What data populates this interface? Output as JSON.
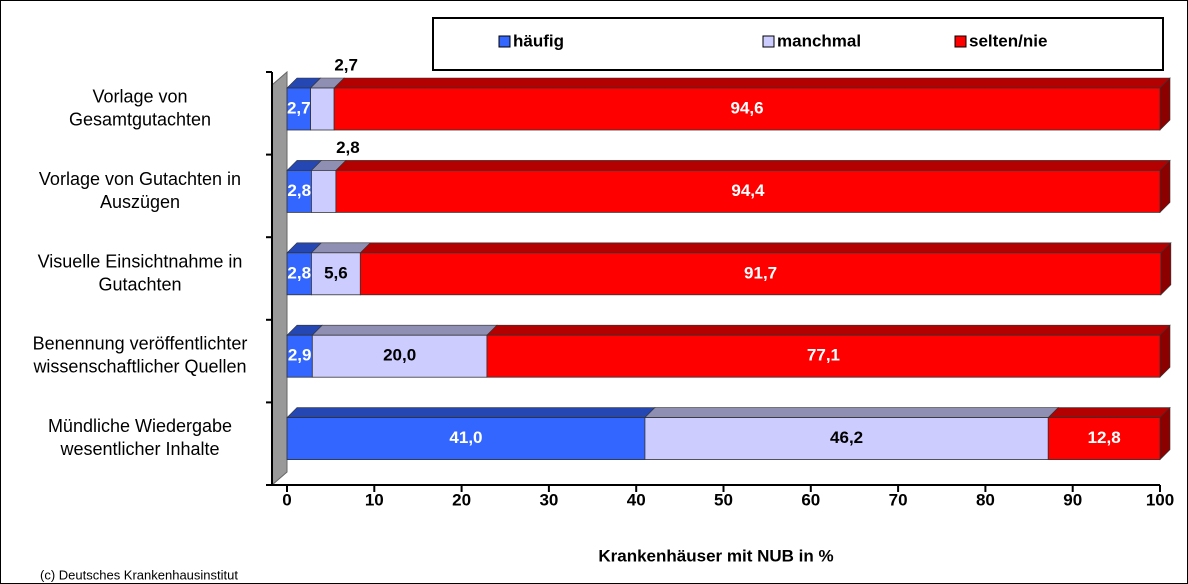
{
  "chart_data": {
    "type": "stacked-bar-horizontal",
    "categories": [
      "Vorlage von Gesamtgutachten",
      "Vorlage von Gutachten in Auszügen",
      "Visuelle Einsichtnahme in Gutachten",
      "Benennung veröffentlichter wissenschaftlicher Quellen",
      "Mündliche Wiedergabe wesentlicher Inhalte"
    ],
    "series": [
      {
        "name": "häufig",
        "color": "#3366ff",
        "values": [
          2.7,
          2.8,
          2.8,
          2.9,
          41.0
        ],
        "value_labels": [
          "2,7",
          "2,8",
          "2,8",
          "2,9",
          "41,0"
        ]
      },
      {
        "name": "manchmal",
        "color": "#ccccff",
        "values": [
          2.7,
          2.8,
          5.6,
          20.0,
          46.2
        ],
        "value_labels": [
          "2,7",
          "2,8",
          "5,6",
          "20,0",
          "46,2"
        ]
      },
      {
        "name": "selten/nie",
        "color": "#ff0000",
        "values": [
          94.6,
          94.4,
          91.7,
          77.1,
          12.8
        ],
        "value_labels": [
          "94,6",
          "94,4",
          "91,7",
          "77,1",
          "12,8"
        ]
      }
    ],
    "x_label": "Krankenhäuser mit NUB in %",
    "xlim": [
      0,
      100
    ],
    "xticks": [
      0,
      10,
      20,
      30,
      40,
      50,
      60,
      70,
      80,
      90,
      100
    ],
    "legend": "top",
    "footnote": "(c) Deutsches Krankenhausinstitut"
  }
}
